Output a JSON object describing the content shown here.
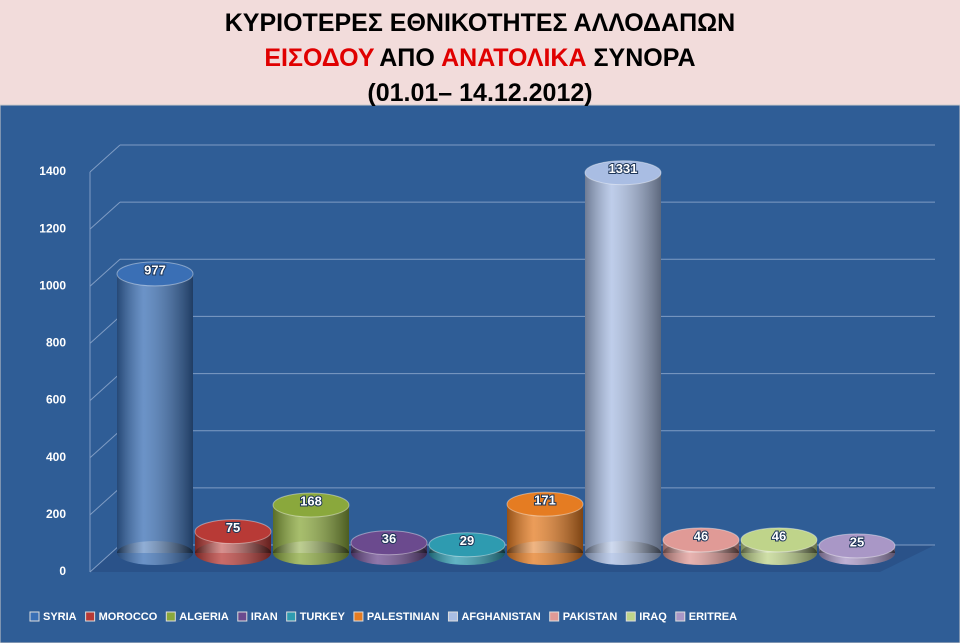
{
  "chart_data": {
    "type": "bar3d",
    "title_lines": [
      [
        {
          "text": "ΚΥΡΙΟΤΕΡΕΣ ΕΘΝΙΚΟΤΗΤΕΣ ΑΛΛΟΔΑΠΩΝ",
          "color": "#000000"
        }
      ],
      [
        {
          "text": "ΕΙΣΟΔΟΥ",
          "color": "#e00000"
        },
        {
          "text": "ΑΠΟ",
          "color": "#000000"
        },
        {
          "text": "ΑΝΑΤΟΛΙΚΑ",
          "color": "#e00000"
        },
        {
          "text": "ΣΥΝΟΡΑ",
          "color": "#000000"
        }
      ],
      [
        {
          "text": "(01.01– 14.12.2012)",
          "color": "#000000"
        }
      ]
    ],
    "categories": [
      "SYRIA",
      "MOROCCO",
      "ALGERIA",
      "IRAN",
      "TURKEY",
      "PALESTINIAN",
      "AFGHANISTAN",
      "PAKISTAN",
      "IRAQ",
      "ERITREA"
    ],
    "values": [
      977,
      75,
      168,
      36,
      29,
      171,
      1331,
      46,
      46,
      25
    ],
    "colors": [
      "#3a6fb5",
      "#b83a36",
      "#8aa83c",
      "#6b4a8e",
      "#2e9bb0",
      "#e57c22",
      "#a9bde3",
      "#e09a96",
      "#bfd48a",
      "#a997c6"
    ],
    "ylim": [
      0,
      1400
    ],
    "yticks": [
      0,
      200,
      400,
      600,
      800,
      1000,
      1200,
      1400
    ],
    "grid": true,
    "legend": "bottom"
  }
}
